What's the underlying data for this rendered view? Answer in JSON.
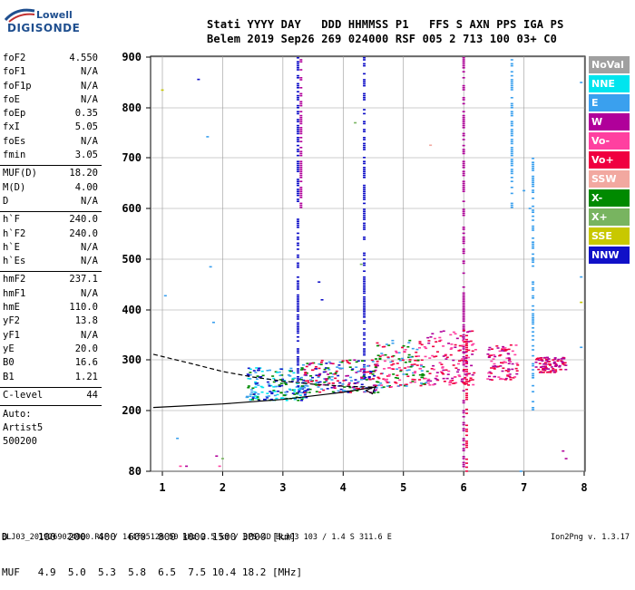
{
  "logo": {
    "top": "Lowell",
    "bottom": "DIGISONDE"
  },
  "header": {
    "line1": "Stati YYYY DAY   DDD HHMMSS P1   FFS S AXN PPS IGA PS",
    "line2": "Belem 2019 Sep26 269 024000 RSF 005 2 713 100 03+ C0"
  },
  "params_group1": [
    {
      "k": "foF2",
      "v": "4.550"
    },
    {
      "k": "foF1",
      "v": "N/A"
    },
    {
      "k": "foF1p",
      "v": "N/A"
    },
    {
      "k": "foE",
      "v": "N/A"
    },
    {
      "k": "foEp",
      "v": "0.35"
    },
    {
      "k": "fxI",
      "v": "5.05"
    },
    {
      "k": "foEs",
      "v": "N/A"
    },
    {
      "k": "fmin",
      "v": "3.05"
    }
  ],
  "params_group2": [
    {
      "k": "MUF(D)",
      "v": "18.20"
    },
    {
      "k": "M(D)",
      "v": "4.00"
    },
    {
      "k": "D",
      "v": "N/A"
    }
  ],
  "params_group3": [
    {
      "k": "h`F",
      "v": "240.0"
    },
    {
      "k": "h`F2",
      "v": "240.0"
    },
    {
      "k": "h`E",
      "v": "N/A"
    },
    {
      "k": "h`Es",
      "v": "N/A"
    }
  ],
  "params_group4": [
    {
      "k": "hmF2",
      "v": "237.1"
    },
    {
      "k": "hmF1",
      "v": "N/A"
    },
    {
      "k": "hmE",
      "v": "110.0"
    },
    {
      "k": "yF2",
      "v": "13.8"
    },
    {
      "k": "yF1",
      "v": "N/A"
    },
    {
      "k": "yE",
      "v": "20.0"
    },
    {
      "k": "B0",
      "v": "16.6"
    },
    {
      "k": "B1",
      "v": "1.21"
    }
  ],
  "params_group5": [
    {
      "k": "C-level",
      "v": "44"
    }
  ],
  "auto": [
    "Auto:",
    "Artist5",
    "500200"
  ],
  "legend": [
    {
      "label": "NoVal",
      "color": "#a0a0a0"
    },
    {
      "label": "NNE",
      "color": "#00e5ee"
    },
    {
      "label": "E",
      "color": "#3aa0ee"
    },
    {
      "label": "W",
      "color": "#b0009a"
    },
    {
      "label": "Vo-",
      "color": "#ff40a0"
    },
    {
      "label": "Vo+",
      "color": "#f00040"
    },
    {
      "label": "SSW",
      "color": "#f2a8a0"
    },
    {
      "label": "X-",
      "color": "#008a00"
    },
    {
      "label": "X+",
      "color": "#78b460"
    },
    {
      "label": "SSE",
      "color": "#c8c800"
    },
    {
      "label": "NNW",
      "color": "#1010c8"
    }
  ],
  "bottom": {
    "row1": "D     100  200  400  600  800 1000 1500 3000 [km]",
    "row2": "MUF   4.9  5.0  5.3  5.8  6.5  7.5 10.4 18.2 [MHz]"
  },
  "footer": {
    "left": "BLJ03_2019269024000.RSF / 144fx512h 50 kHz 2.5 km / DPS-4D BLJ03 103 / 1.4 S 311.6 E",
    "right": "Ion2Png v. 1.3.17"
  },
  "chart_data": {
    "type": "scatter",
    "x_ticks": [
      "1",
      "2",
      "3",
      "4",
      "5",
      "6",
      "7",
      "8"
    ],
    "y_ticks": [
      "80",
      "200",
      "300",
      "400",
      "500",
      "600",
      "700",
      "800",
      "900"
    ],
    "xlim": [
      0.85,
      8.0
    ],
    "ylim": [
      80,
      900
    ],
    "y_scale": "log-like",
    "grid": true,
    "trace_solid": [
      [
        0.85,
        206
      ],
      [
        2.0,
        213
      ],
      [
        3.0,
        222
      ],
      [
        4.0,
        236
      ],
      [
        4.55,
        247
      ]
    ],
    "trace_dashed": [
      [
        0.85,
        311
      ],
      [
        1.5,
        292
      ],
      [
        2.0,
        277
      ],
      [
        2.5,
        266
      ],
      [
        3.0,
        258
      ],
      [
        3.5,
        252
      ],
      [
        4.0,
        248
      ],
      [
        4.55,
        246
      ]
    ],
    "echo_clusters": [
      {
        "fmin": 2.4,
        "fmax": 3.4,
        "hmin": 220,
        "hmax": 285,
        "colors": [
          "#3aa0ee",
          "#00e5ee",
          "#1010c8",
          "#008a00"
        ]
      },
      {
        "fmin": 3.3,
        "fmax": 4.6,
        "hmin": 235,
        "hmax": 300,
        "colors": [
          "#f00040",
          "#b0009a",
          "#1010c8",
          "#3aa0ee",
          "#008a00"
        ]
      },
      {
        "fmin": 4.5,
        "fmax": 5.4,
        "hmin": 245,
        "hmax": 340,
        "colors": [
          "#f00040",
          "#ff40a0",
          "#008a00",
          "#3aa0ee"
        ]
      },
      {
        "fmin": 5.4,
        "fmax": 6.2,
        "hmin": 250,
        "hmax": 360,
        "colors": [
          "#f00040",
          "#ff40a0",
          "#b0009a"
        ]
      },
      {
        "fmin": 6.4,
        "fmax": 6.9,
        "hmin": 260,
        "hmax": 330,
        "colors": [
          "#f00040",
          "#ff40a0",
          "#b0009a"
        ]
      },
      {
        "fmin": 7.2,
        "fmax": 7.7,
        "hmin": 275,
        "hmax": 305,
        "colors": [
          "#f00040",
          "#b0009a"
        ]
      }
    ],
    "vertical_streaks": [
      {
        "f": 3.25,
        "hmin": 230,
        "hmax": 900,
        "color": "#1010c8"
      },
      {
        "f": 3.3,
        "hmin": 600,
        "hmax": 900,
        "color": "#b0009a"
      },
      {
        "f": 4.35,
        "hmin": 260,
        "hmax": 900,
        "color": "#1010c8"
      },
      {
        "f": 6.0,
        "hmin": 80,
        "hmax": 900,
        "color": "#b0009a"
      },
      {
        "f": 6.05,
        "hmin": 80,
        "hmax": 350,
        "color": "#f00040"
      },
      {
        "f": 6.8,
        "hmin": 600,
        "hmax": 900,
        "color": "#3aa0ee"
      },
      {
        "f": 7.15,
        "hmin": 200,
        "hmax": 700,
        "color": "#3aa0ee"
      }
    ]
  }
}
